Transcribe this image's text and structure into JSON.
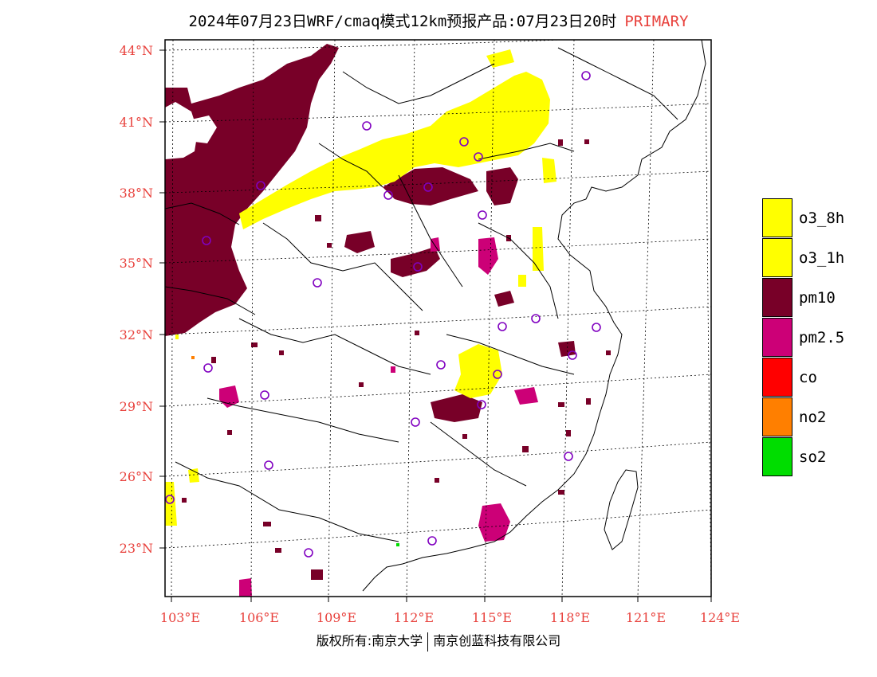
{
  "header": {
    "title": "2024年07月23日WRF/cmaq模式12km预报产品:07月23日20时",
    "primary_label": "PRIMARY"
  },
  "axes": {
    "lat_labels": [
      "44°N",
      "41°N",
      "38°N",
      "35°N",
      "32°N",
      "29°N",
      "26°N",
      "23°N"
    ],
    "lon_labels": [
      "103°E",
      "106°E",
      "109°E",
      "112°E",
      "115°E",
      "118°E",
      "121°E",
      "124°E"
    ]
  },
  "legend": {
    "items": [
      {
        "label": "o3_8h",
        "color": "#ffff00"
      },
      {
        "label": "o3_1h",
        "color": "#ffff00"
      },
      {
        "label": "pm10",
        "color": "#780028"
      },
      {
        "label": "pm2.5",
        "color": "#cc0077"
      },
      {
        "label": "co",
        "color": "#ff0000"
      },
      {
        "label": "no2",
        "color": "#ff7f00"
      },
      {
        "label": "so2",
        "color": "#00dd00"
      }
    ]
  },
  "footer": {
    "copyright": "版权所有:南京大学",
    "company": "南京创蓝科技有限公司"
  },
  "colors": {
    "accent": "#e8413c",
    "pm10": "#780028",
    "pm25": "#cc0077",
    "o3": "#ffff00",
    "station_circle": "#8000c0"
  }
}
